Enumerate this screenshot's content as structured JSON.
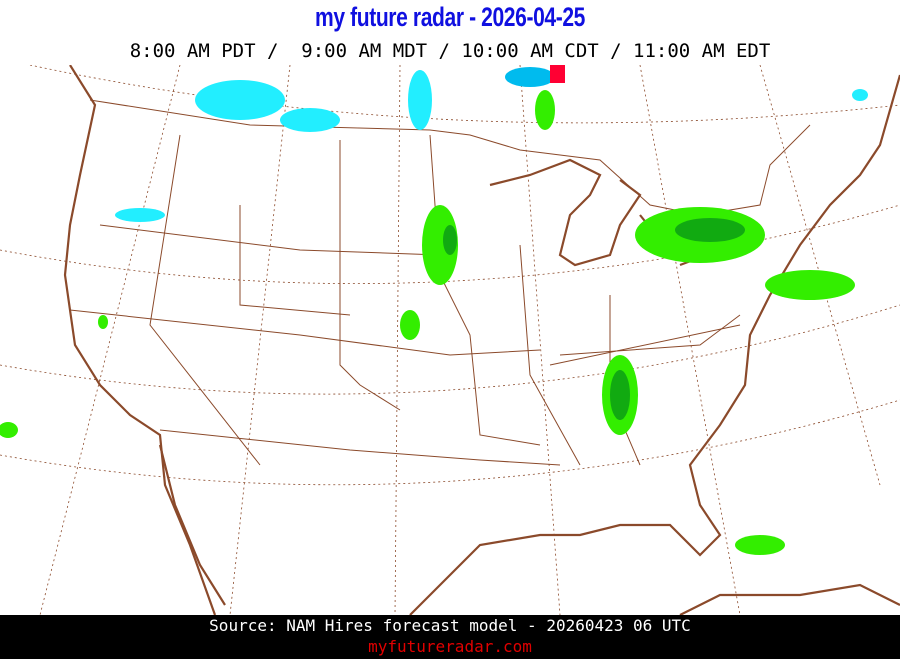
{
  "header": {
    "title": "my future radar - 2026-04-25",
    "times": "8:00 AM PDT /  9:00 AM MDT / 10:00 AM CDT / 11:00 AM EDT"
  },
  "map": {
    "border_color": "#8b4a2b",
    "state_line_color": "#8b4a2b",
    "gridline_style": "dashed",
    "precip_colors": {
      "light_rain": "#33ee00",
      "moderate_rain": "#11aa11",
      "snow": "#22eeff",
      "snow_heavy": "#00bbee",
      "mix": "#ff0033"
    }
  },
  "footer": {
    "source": "Source: NAM Hires forecast model - 20260423 06 UTC",
    "site": "myfutureradar.com",
    "site_color": "#e00000"
  }
}
